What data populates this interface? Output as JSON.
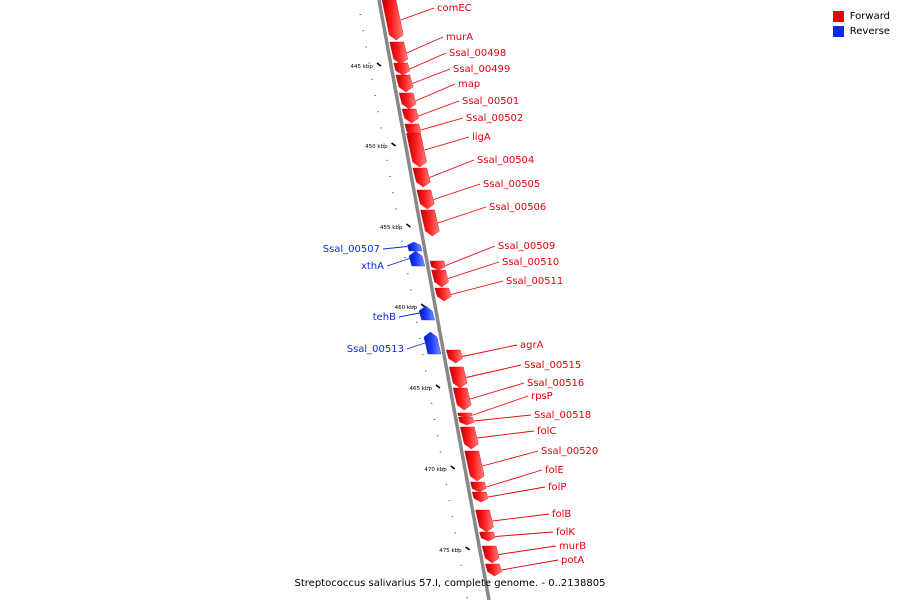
{
  "colors": {
    "forward": "#e8000b",
    "reverse": "#0b2ae8",
    "backbone": "#888888"
  },
  "legend": [
    {
      "label": "Forward",
      "strand": "forward"
    },
    {
      "label": "Reverse",
      "strand": "reverse"
    }
  ],
  "caption": "Streptococcus salivarius 57.I, complete genome. - 0..2138805",
  "ticks": [
    "445 kbp",
    "450 kbp",
    "455 kbp",
    "460 kbp",
    "465 kbp",
    "470 kbp",
    "475 kbp"
  ],
  "genes": [
    {
      "name": "comEC",
      "strand": "forward"
    },
    {
      "name": "murA",
      "strand": "forward"
    },
    {
      "name": "Ssal_00498",
      "strand": "forward"
    },
    {
      "name": "Ssal_00499",
      "strand": "forward"
    },
    {
      "name": "map",
      "strand": "forward"
    },
    {
      "name": "Ssal_00501",
      "strand": "forward"
    },
    {
      "name": "Ssal_00502",
      "strand": "forward"
    },
    {
      "name": "ligA",
      "strand": "forward"
    },
    {
      "name": "Ssal_00504",
      "strand": "forward"
    },
    {
      "name": "Ssal_00505",
      "strand": "forward"
    },
    {
      "name": "Ssal_00506",
      "strand": "forward"
    },
    {
      "name": "Ssal_00507",
      "strand": "reverse"
    },
    {
      "name": "xthA",
      "strand": "reverse"
    },
    {
      "name": "Ssal_00509",
      "strand": "forward"
    },
    {
      "name": "Ssal_00510",
      "strand": "forward"
    },
    {
      "name": "Ssal_00511",
      "strand": "forward"
    },
    {
      "name": "tehB",
      "strand": "reverse"
    },
    {
      "name": "Ssal_00513",
      "strand": "reverse"
    },
    {
      "name": "agrA",
      "strand": "forward"
    },
    {
      "name": "Ssal_00515",
      "strand": "forward"
    },
    {
      "name": "Ssal_00516",
      "strand": "forward"
    },
    {
      "name": "rpsP",
      "strand": "forward"
    },
    {
      "name": "Ssal_00518",
      "strand": "forward"
    },
    {
      "name": "folC",
      "strand": "forward"
    },
    {
      "name": "Ssal_00520",
      "strand": "forward"
    },
    {
      "name": "folE",
      "strand": "forward"
    },
    {
      "name": "folP",
      "strand": "forward"
    },
    {
      "name": "folB",
      "strand": "forward"
    },
    {
      "name": "folK",
      "strand": "forward"
    },
    {
      "name": "murB",
      "strand": "forward"
    },
    {
      "name": "potA",
      "strand": "forward"
    }
  ]
}
